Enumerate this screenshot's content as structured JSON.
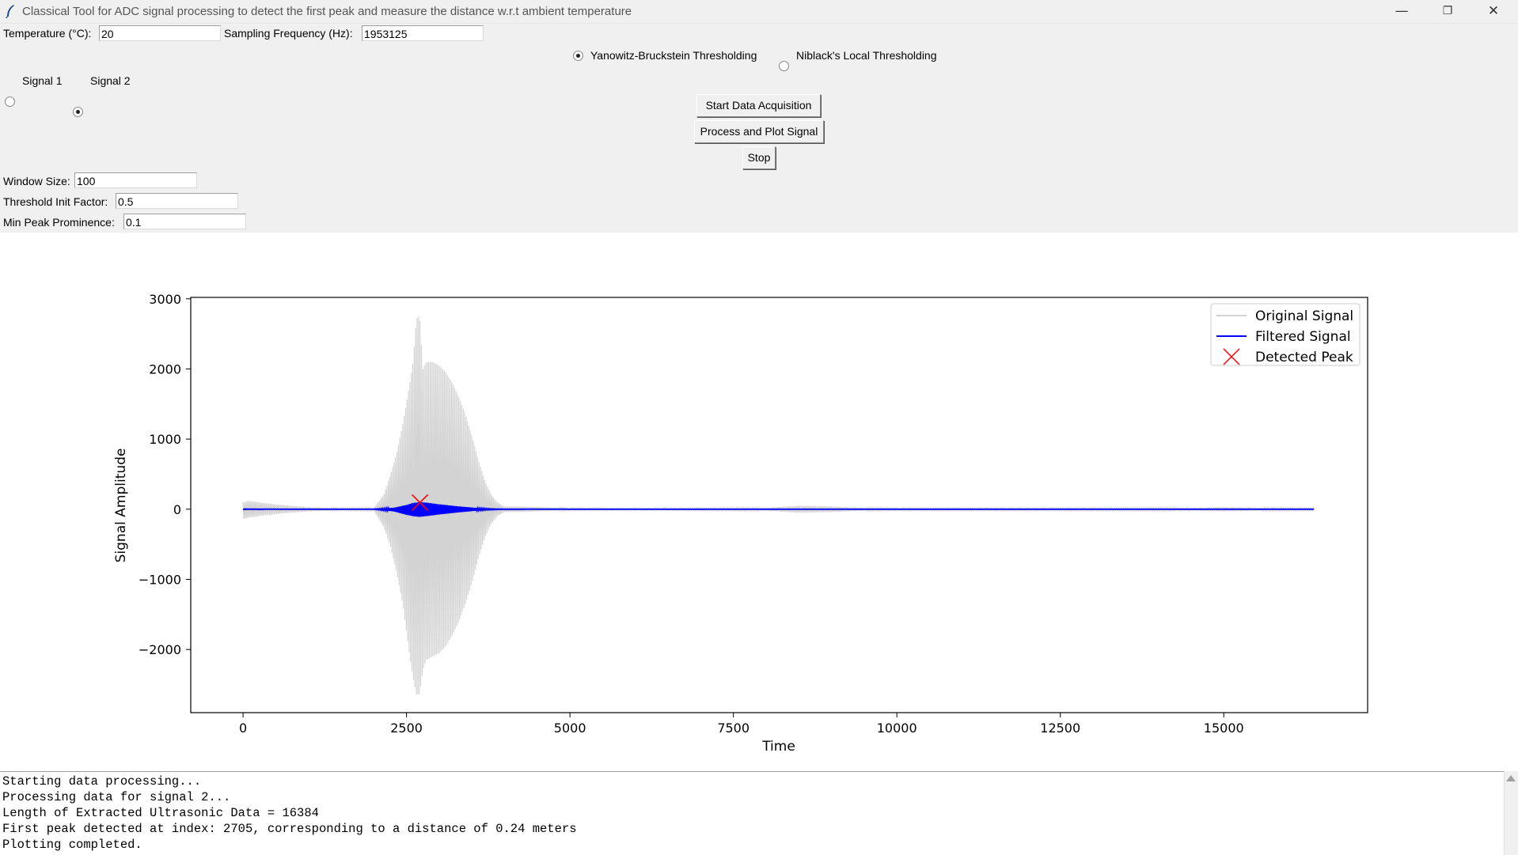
{
  "window": {
    "title": "Classical Tool for ADC signal processing to detect the first peak and measure the distance w.r.t ambient temperature",
    "minimize": "—",
    "restore": "❐",
    "close": "✕"
  },
  "params": {
    "temperature_label": "Temperature (°C):",
    "temperature_value": "20",
    "sampling_label": "Sampling Frequency (Hz):",
    "sampling_value": "1953125"
  },
  "threshold_methods": {
    "selected": "yanowitz",
    "yanowitz_label": "Yanowitz-Bruckstein Thresholding",
    "niblack_label": "Niblack's Local Thresholding"
  },
  "signals": {
    "selected": "signal2",
    "signal1_label": "Signal 1",
    "signal2_label": "Signal 2"
  },
  "buttons": {
    "start": "Start Data Acquisition",
    "process": "Process and Plot Signal",
    "stop": "Stop"
  },
  "settings": {
    "window_size_label": "Window Size:",
    "window_size_value": "100",
    "threshold_init_label": "Threshold Init Factor:",
    "threshold_init_value": "0.5",
    "min_prominence_label": "Min Peak Prominence:",
    "min_prominence_value": "0.1"
  },
  "chart_data": {
    "type": "line",
    "title": "",
    "xlabel": "Time",
    "ylabel": "Signal Amplitude",
    "xlim": [
      -800,
      17200
    ],
    "ylim": [
      -2900,
      3020
    ],
    "xticks": [
      0,
      2500,
      5000,
      7500,
      10000,
      12500,
      15000
    ],
    "xtick_labels": [
      "0",
      "2500",
      "5000",
      "7500",
      "10000",
      "12500",
      "15000"
    ],
    "yticks": [
      -2000,
      -1000,
      0,
      1000,
      2000,
      3000
    ],
    "ytick_labels": [
      "−2000",
      "−1000",
      "0",
      "1000",
      "2000",
      "3000"
    ],
    "legend_position": "top-right",
    "grid": false,
    "series": [
      {
        "name": "Original Signal",
        "color": "#d3d3d3",
        "envelope_x": [
          0,
          100,
          300,
          600,
          1000,
          1500,
          2000,
          2150,
          2250,
          2350,
          2450,
          2550,
          2600,
          2650,
          2700,
          2750,
          2800,
          2900,
          3000,
          3100,
          3200,
          3300,
          3400,
          3500,
          3600,
          3700,
          3800,
          3900,
          4000,
          4200,
          4500,
          5000,
          6000,
          7000,
          8000,
          8500,
          9000,
          9500,
          10000,
          12000,
          14500,
          15000,
          15500,
          16383
        ],
        "envelope_upper": [
          100,
          120,
          90,
          60,
          30,
          15,
          20,
          200,
          480,
          800,
          1250,
          1800,
          2100,
          2700,
          2780,
          2000,
          2100,
          2100,
          2050,
          1950,
          1800,
          1600,
          1350,
          1050,
          700,
          400,
          200,
          90,
          40,
          40,
          30,
          15,
          10,
          15,
          20,
          50,
          40,
          20,
          15,
          15,
          20,
          30,
          20,
          15
        ],
        "envelope_lower": [
          -140,
          -120,
          -90,
          -60,
          -30,
          -15,
          -20,
          -250,
          -520,
          -900,
          -1400,
          -2100,
          -2400,
          -2640,
          -2640,
          -2300,
          -2150,
          -2100,
          -2050,
          -1950,
          -1800,
          -1600,
          -1350,
          -1050,
          -700,
          -400,
          -200,
          -90,
          -40,
          -40,
          -30,
          -15,
          -10,
          -15,
          -20,
          -50,
          -40,
          -20,
          -15,
          -15,
          -20,
          -30,
          -20,
          -15
        ]
      },
      {
        "name": "Filtered Signal",
        "color": "#0000ff",
        "envelope_x": [
          0,
          500,
          2000,
          2300,
          2500,
          2600,
          2700,
          2800,
          3000,
          3300,
          3600,
          3800,
          4000,
          5000,
          10000,
          16383
        ],
        "envelope_upper": [
          5,
          3,
          3,
          20,
          60,
          90,
          100,
          95,
          70,
          40,
          15,
          6,
          4,
          3,
          3,
          3
        ],
        "envelope_lower": [
          -5,
          -3,
          -3,
          -30,
          -80,
          -100,
          -110,
          -100,
          -75,
          -45,
          -18,
          -8,
          -4,
          -3,
          -3,
          -3
        ]
      },
      {
        "name": "Detected Peak",
        "color": "#ff0000",
        "marker": "x",
        "points": [
          [
            2705,
            95
          ]
        ]
      }
    ]
  },
  "console": {
    "lines": [
      "Starting data processing...",
      "Processing data for signal 2...",
      "Length of Extracted Ultrasonic Data = 16384",
      "First peak detected at index: 2705, corresponding to a distance of 0.24 meters",
      "Plotting completed."
    ]
  }
}
